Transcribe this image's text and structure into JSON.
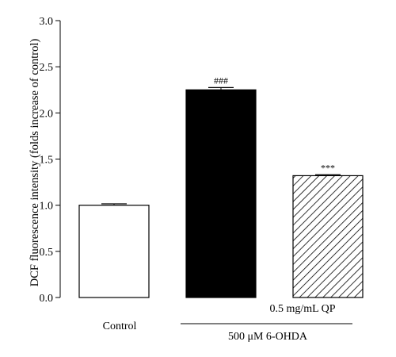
{
  "chart_data": {
    "type": "bar",
    "ylabel": "DCF fluorescence intensity (folds increase of control)",
    "ylim": [
      0,
      3.0
    ],
    "yticks": [
      "0.0",
      "0.5",
      "1.0",
      "1.5",
      "2.0",
      "2.5",
      "3.0"
    ],
    "grid": false,
    "bars": [
      {
        "value": 1.0,
        "error": 0.015,
        "fill": "white",
        "annotation": ""
      },
      {
        "value": 2.25,
        "error": 0.025,
        "fill": "black",
        "annotation": "###"
      },
      {
        "value": 1.32,
        "error": 0.01,
        "fill": "hatched",
        "annotation": "***"
      }
    ],
    "category_labels": {
      "control": "Control",
      "qp": "0.5 mg/mL QP",
      "group": "500 μM 6-OHDA"
    }
  }
}
